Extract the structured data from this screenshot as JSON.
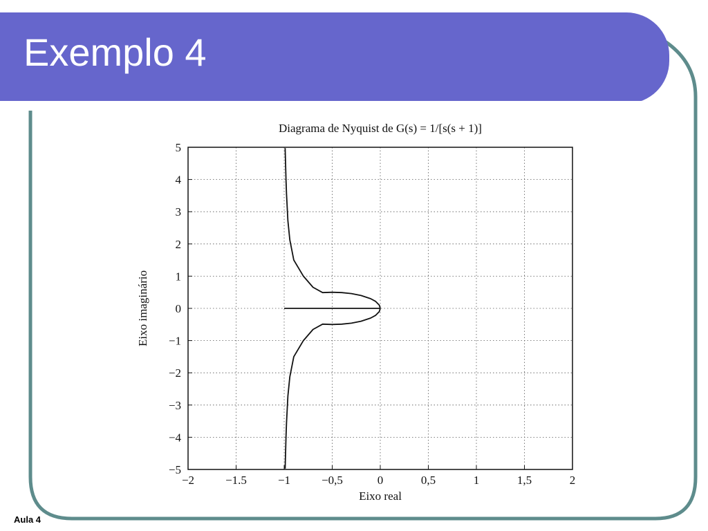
{
  "slide": {
    "title": "Exemplo 4",
    "footer": "Aula 4",
    "accent_color": "#6666cc",
    "frame_color": "#5e8c8c"
  },
  "chart_data": {
    "type": "line",
    "title": "Diagrama de Nyquist de G(s) = 1/[s(s + 1)]",
    "xlabel": "Eixo real",
    "ylabel": "Eixo imaginário",
    "xlim": [
      -2,
      2
    ],
    "ylim": [
      -5,
      5
    ],
    "grid": true,
    "x_ticks": [
      -2,
      -1.5,
      -1,
      -0.5,
      0,
      0.5,
      1,
      1.5,
      2
    ],
    "x_tick_labels": [
      "−2",
      "−1.5",
      "−1",
      "−0,5",
      "0",
      "0,5",
      "1",
      "1,5",
      "2"
    ],
    "y_ticks": [
      5,
      4,
      3,
      2,
      1,
      0,
      -1,
      -2,
      -3,
      -4,
      -5
    ],
    "y_tick_labels": [
      "5",
      "4",
      "3",
      "2",
      "1",
      "0",
      "−1",
      "−2",
      "−3",
      "−4",
      "−5"
    ],
    "series": [
      {
        "x": [
          -0.9901,
          -0.9804,
          -0.9756,
          -0.9615,
          -0.9412,
          -0.9,
          -0.8,
          -0.7,
          -0.6,
          -0.5,
          -0.4,
          -0.3,
          -0.2,
          -0.1,
          -0.05,
          -0.01,
          0
        ],
        "y": [
          4.9752,
          3.9604,
          3.5444,
          2.7176,
          2.122,
          1.5,
          1.0,
          0.6547,
          0.4899,
          0.5,
          0.4899,
          0.4583,
          0.4,
          0.3,
          0.2179,
          0.0995,
          0
        ]
      },
      {
        "x": [
          -0.9901,
          -0.9804,
          -0.9756,
          -0.9615,
          -0.9412,
          -0.9,
          -0.8,
          -0.7,
          -0.6,
          -0.5,
          -0.4,
          -0.3,
          -0.2,
          -0.1,
          -0.05,
          -0.01,
          0
        ],
        "y": [
          -4.9752,
          -3.9604,
          -3.5444,
          -2.7176,
          -2.122,
          -1.5,
          -1.0,
          -0.6547,
          -0.4899,
          -0.5,
          -0.4899,
          -0.4583,
          -0.4,
          -0.3,
          -0.2179,
          -0.0995,
          0
        ]
      },
      {
        "x": [
          -1,
          0
        ],
        "y": [
          0,
          0
        ]
      }
    ]
  }
}
